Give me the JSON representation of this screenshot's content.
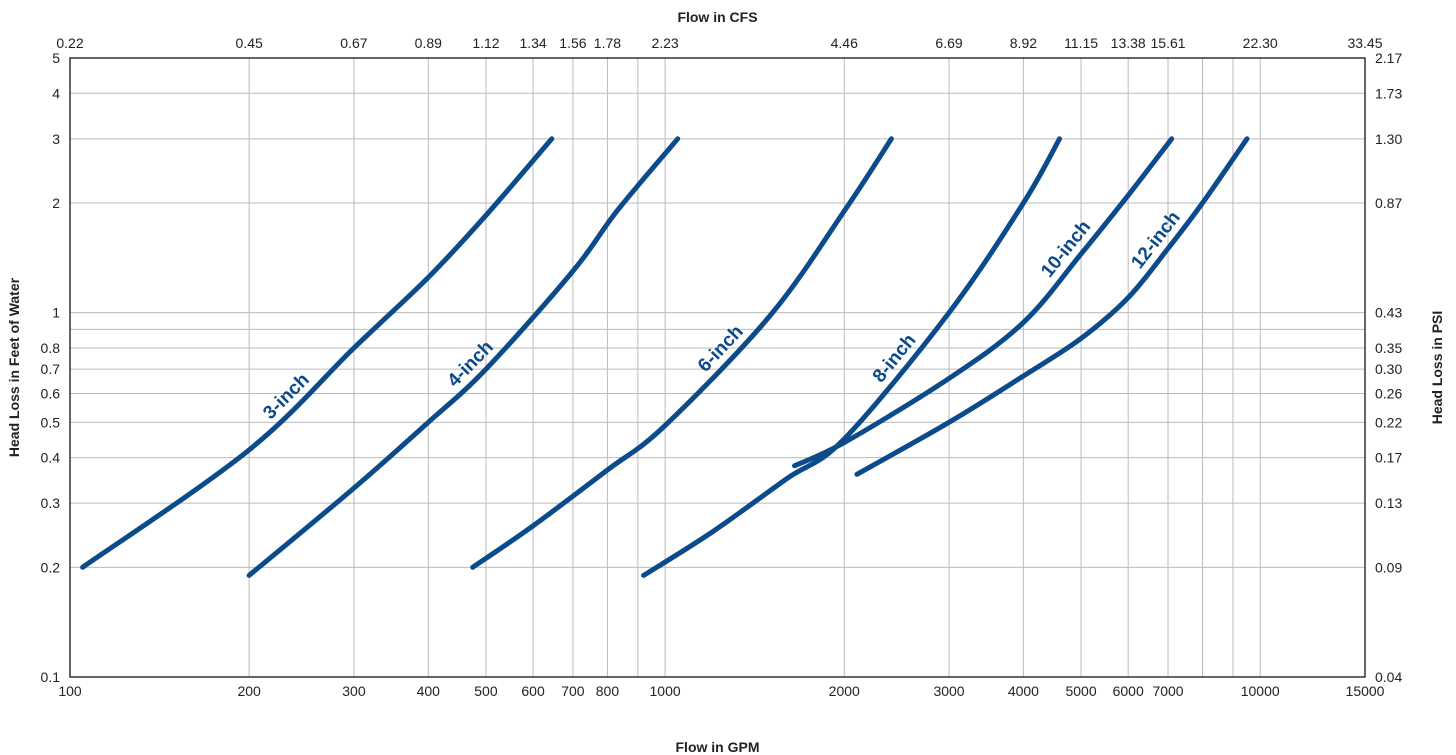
{
  "chart_data": {
    "type": "line",
    "title": "",
    "xlabel": "Flow in GPM",
    "x2label": "Flow in CFS",
    "ylabel": "Head Loss in Feet of Water",
    "y2label": "Head Loss in PSI",
    "xscale": "log",
    "yscale": "log",
    "xlim": [
      100,
      15000
    ],
    "ylim": [
      0.1,
      5
    ],
    "grid": true,
    "legend": "none",
    "color": "#0b4a8b",
    "x_ticks": [
      {
        "value": 100,
        "label": "100"
      },
      {
        "value": 200,
        "label": "200"
      },
      {
        "value": 300,
        "label": "300"
      },
      {
        "value": 400,
        "label": "400"
      },
      {
        "value": 500,
        "label": "500"
      },
      {
        "value": 600,
        "label": "600"
      },
      {
        "value": 700,
        "label": "700"
      },
      {
        "value": 800,
        "label": "800"
      },
      {
        "value": 1000,
        "label": "1000"
      },
      {
        "value": 2000,
        "label": "2000"
      },
      {
        "value": 3000,
        "label": "3000"
      },
      {
        "value": 4000,
        "label": "4000"
      },
      {
        "value": 5000,
        "label": "5000"
      },
      {
        "value": 6000,
        "label": "6000"
      },
      {
        "value": 7000,
        "label": "7000"
      },
      {
        "value": 10000,
        "label": "10000"
      },
      {
        "value": 15000,
        "label": "15000"
      }
    ],
    "x_extra_gridlines": [
      900,
      8000,
      9000
    ],
    "x2_ticks": [
      {
        "value": 100,
        "label": "0.22"
      },
      {
        "value": 200,
        "label": "0.45"
      },
      {
        "value": 300,
        "label": "0.67"
      },
      {
        "value": 400,
        "label": "0.89"
      },
      {
        "value": 500,
        "label": "1.12"
      },
      {
        "value": 600,
        "label": "1.34"
      },
      {
        "value": 700,
        "label": "1.56"
      },
      {
        "value": 800,
        "label": "1.78"
      },
      {
        "value": 1000,
        "label": "2.23"
      },
      {
        "value": 2000,
        "label": "4.46"
      },
      {
        "value": 3000,
        "label": "6.69"
      },
      {
        "value": 4000,
        "label": "8.92"
      },
      {
        "value": 5000,
        "label": "11.15"
      },
      {
        "value": 6000,
        "label": "13.38"
      },
      {
        "value": 7000,
        "label": "15.61"
      },
      {
        "value": 10000,
        "label": "22.30"
      },
      {
        "value": 15000,
        "label": "33.45"
      }
    ],
    "y_ticks": [
      {
        "value": 0.1,
        "label": "0.1"
      },
      {
        "value": 0.2,
        "label": "0.2"
      },
      {
        "value": 0.3,
        "label": "0.3"
      },
      {
        "value": 0.4,
        "label": "0.4"
      },
      {
        "value": 0.5,
        "label": "0.5"
      },
      {
        "value": 0.6,
        "label": "0.6"
      },
      {
        "value": 0.7,
        "label": "0.7"
      },
      {
        "value": 0.8,
        "label": "0.8"
      },
      {
        "value": 1,
        "label": "1"
      },
      {
        "value": 2,
        "label": "2"
      },
      {
        "value": 3,
        "label": "3"
      },
      {
        "value": 4,
        "label": "4"
      },
      {
        "value": 5,
        "label": "5"
      }
    ],
    "y_extra_gridlines": [
      0.9
    ],
    "y2_ticks": [
      {
        "value": 0.1,
        "label": "0.04"
      },
      {
        "value": 0.2,
        "label": "0.09"
      },
      {
        "value": 0.3,
        "label": "0.13"
      },
      {
        "value": 0.4,
        "label": "0.17"
      },
      {
        "value": 0.5,
        "label": "0.22"
      },
      {
        "value": 0.6,
        "label": "0.26"
      },
      {
        "value": 0.7,
        "label": "0.30"
      },
      {
        "value": 0.8,
        "label": "0.35"
      },
      {
        "value": 1,
        "label": "0.43"
      },
      {
        "value": 2,
        "label": "0.87"
      },
      {
        "value": 3,
        "label": "1.30"
      },
      {
        "value": 4,
        "label": "1.73"
      },
      {
        "value": 5,
        "label": "2.17"
      }
    ],
    "series": [
      {
        "name": "3-inch",
        "x": [
          105,
          200,
          300,
          400,
          500,
          645
        ],
        "y": [
          0.2,
          0.42,
          0.8,
          1.25,
          1.85,
          3.0
        ]
      },
      {
        "name": "4-inch",
        "x": [
          200,
          300,
          400,
          500,
          700,
          830,
          1050
        ],
        "y": [
          0.19,
          0.33,
          0.5,
          0.7,
          1.3,
          1.9,
          3.0
        ]
      },
      {
        "name": "6-inch",
        "x": [
          475,
          600,
          800,
          1000,
          1500,
          2000,
          2400
        ],
        "y": [
          0.2,
          0.26,
          0.37,
          0.49,
          0.98,
          1.9,
          3.0
        ]
      },
      {
        "name": "8-inch",
        "x": [
          920,
          1200,
          1600,
          2000,
          3000,
          4000,
          4600
        ],
        "y": [
          0.19,
          0.25,
          0.35,
          0.45,
          1.0,
          2.0,
          3.0
        ]
      },
      {
        "name": "10-inch",
        "x": [
          1650,
          2000,
          3000,
          4000,
          5000,
          6000,
          7100
        ],
        "y": [
          0.38,
          0.44,
          0.66,
          0.94,
          1.45,
          2.1,
          3.0
        ]
      },
      {
        "name": "12-inch",
        "x": [
          2100,
          3000,
          4000,
          5000,
          6000,
          7000,
          8000,
          9500
        ],
        "y": [
          0.36,
          0.5,
          0.67,
          0.85,
          1.1,
          1.5,
          2.0,
          3.0
        ]
      }
    ]
  }
}
